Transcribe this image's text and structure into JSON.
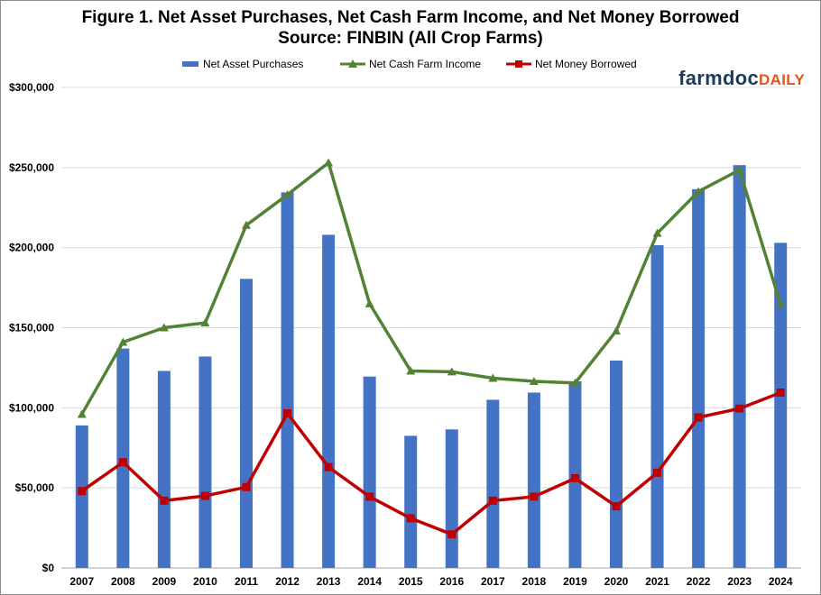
{
  "title_line1": "Figure 1. Net Asset Purchases, Net Cash Farm Income, and Net Money Borrowed",
  "title_line2": "Source:  FINBIN (All Crop Farms)",
  "logo": {
    "part1": "farmdoc",
    "part2": "DAILY"
  },
  "colors": {
    "bars": "#4472c4",
    "income": "#548235",
    "borrowed": "#c00000",
    "grid": "#d9d9d9",
    "logo_dark": "#1f3a5a",
    "logo_accent": "#e2541b"
  },
  "chart_data": {
    "type": "bar",
    "title": "Figure 1. Net Asset Purchases, Net Cash Farm Income, and Net Money Borrowed",
    "subtitle": "Source:  FINBIN (All Crop Farms)",
    "categories": [
      "2007",
      "2008",
      "2009",
      "2010",
      "2011",
      "2012",
      "2013",
      "2014",
      "2015",
      "2016",
      "2017",
      "2018",
      "2019",
      "2020",
      "2021",
      "2022",
      "2023",
      "2024"
    ],
    "ylim": [
      0,
      300000
    ],
    "yticks": [
      0,
      50000,
      100000,
      150000,
      200000,
      250000,
      300000
    ],
    "ytick_labels": [
      "$0",
      "$50,000",
      "$100,000",
      "$150,000",
      "$200,000",
      "$250,000",
      "$300,000"
    ],
    "grid": true,
    "legend_position": "top",
    "series": [
      {
        "name": "Net Asset Purchases",
        "kind": "bar",
        "values": [
          89000,
          137000,
          123000,
          132000,
          180500,
          234500,
          208000,
          119500,
          82500,
          86500,
          105000,
          109500,
          116500,
          129500,
          201500,
          236500,
          251500,
          203000
        ]
      },
      {
        "name": "Net Cash Farm Income",
        "kind": "line",
        "marker": "triangle",
        "values": [
          96000,
          141000,
          150000,
          153000,
          214000,
          233000,
          253000,
          165000,
          123000,
          122500,
          118500,
          116500,
          115500,
          148000,
          209000,
          235000,
          248500,
          164500
        ]
      },
      {
        "name": "Net Money Borrowed",
        "kind": "line",
        "marker": "square",
        "values": [
          48000,
          66000,
          42000,
          45000,
          50500,
          96500,
          63000,
          44500,
          31000,
          21000,
          42000,
          44500,
          56000,
          38500,
          59500,
          94000,
          99500,
          109500
        ]
      }
    ]
  }
}
